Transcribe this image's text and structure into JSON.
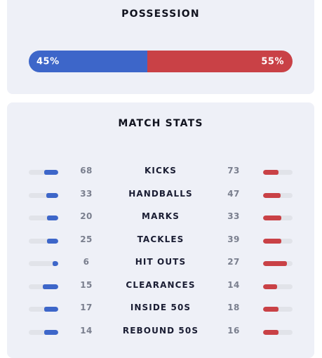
{
  "possession": {
    "title": "POSSESSION",
    "home_label": "45%",
    "away_label": "55%",
    "home_fraction": 0.45,
    "home_color": "#3d66c9",
    "away_color": "#c94146"
  },
  "match_stats": {
    "title": "MATCH STATS",
    "rows": [
      {
        "label": "KICKS",
        "home": "68",
        "away": "73"
      },
      {
        "label": "HANDBALLS",
        "home": "33",
        "away": "47"
      },
      {
        "label": "MARKS",
        "home": "20",
        "away": "33"
      },
      {
        "label": "TACKLES",
        "home": "25",
        "away": "39"
      },
      {
        "label": "HIT OUTS",
        "home": "6",
        "away": "27"
      },
      {
        "label": "CLEARANCES",
        "home": "15",
        "away": "14"
      },
      {
        "label": "INSIDE 50S",
        "home": "17",
        "away": "18"
      },
      {
        "label": "REBOUND 50S",
        "home": "14",
        "away": "16"
      }
    ]
  }
}
